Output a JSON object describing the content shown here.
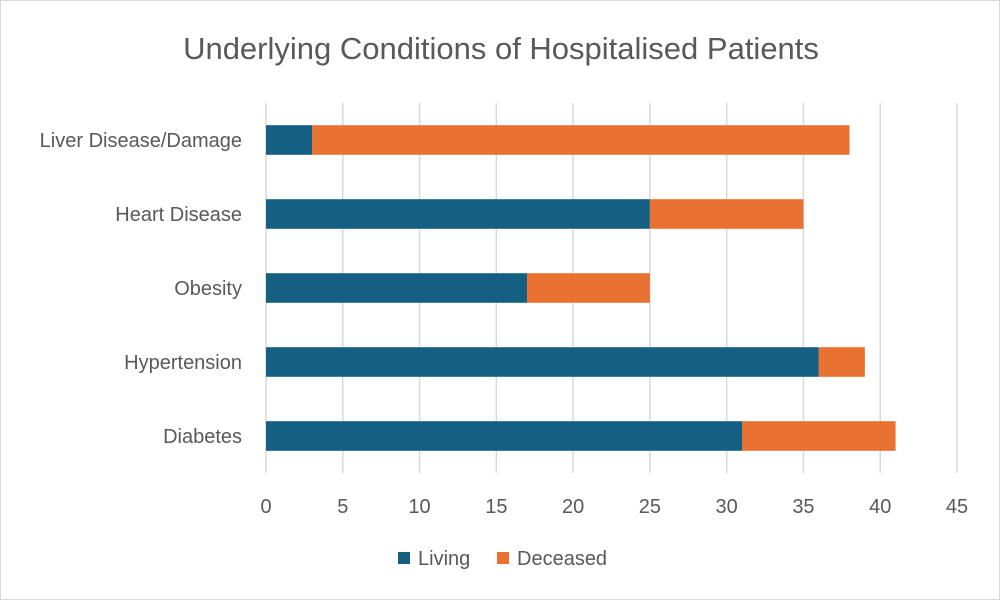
{
  "chart_data": {
    "type": "bar",
    "orientation": "horizontal",
    "stacked": true,
    "title": "Underlying Conditions of Hospitalised Patients",
    "categories": [
      "Liver Disease/Damage",
      "Heart Disease",
      "Obesity",
      "Hypertension",
      "Diabetes"
    ],
    "series": [
      {
        "name": "Living",
        "color": "#156082",
        "values": [
          3,
          25,
          17,
          36,
          31
        ]
      },
      {
        "name": "Deceased",
        "color": "#e97132",
        "values": [
          35,
          10,
          8,
          3,
          10
        ]
      }
    ],
    "xlim": [
      0,
      45
    ],
    "x_ticks": [
      "0",
      "5",
      "10",
      "15",
      "20",
      "25",
      "30",
      "35",
      "40",
      "45"
    ],
    "grid": "vertical",
    "legend_position": "bottom"
  }
}
